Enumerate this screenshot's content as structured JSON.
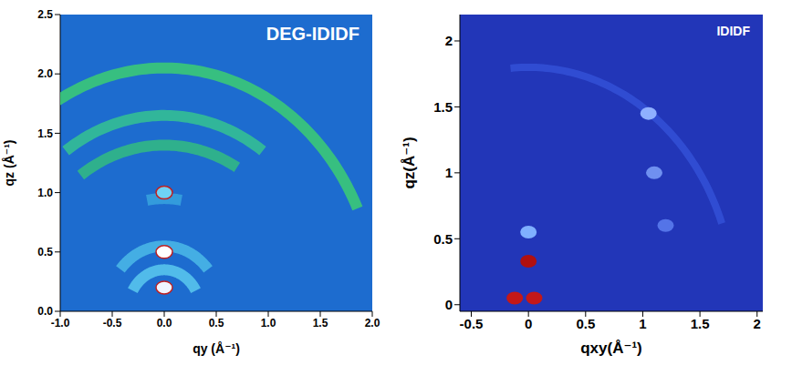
{
  "chart_data": [
    {
      "type": "scatter",
      "title": "DEG-IDIDF",
      "x_label": "qy (Å⁻¹)",
      "y_label": "qz (Å⁻¹)",
      "xlim": [
        -1,
        2
      ],
      "xticks": [
        {
          "value": -1,
          "label": "-1.0"
        },
        -0.5,
        {
          "value": 0,
          "label": "0.0"
        },
        0.5,
        {
          "value": 1,
          "label": "1.0"
        },
        1.5,
        {
          "value": 2,
          "label": "2.0"
        }
      ],
      "ylim": [
        0,
        2.5
      ],
      "yticks": [
        {
          "value": 0,
          "label": "0.0"
        },
        0.5,
        {
          "value": 1,
          "label": "1.0"
        },
        1.5,
        {
          "value": 2,
          "label": "2.0"
        },
        2.5
      ],
      "rings": [
        {
          "q": 2.05,
          "from_angle": 25,
          "to_angle": 120,
          "color": "#3fd46c"
        },
        {
          "q": 1.65,
          "from_angle": 55,
          "to_angle": 125,
          "color": "#37c98c"
        },
        {
          "q": 1.4,
          "from_angle": 60,
          "to_angle": 125,
          "color": "#34c27a"
        },
        {
          "q": 0.95,
          "from_angle": 80,
          "to_angle": 100,
          "color": "#3aa8de"
        },
        {
          "q": 0.55,
          "from_angle": 40,
          "to_angle": 140,
          "color": "#4fbfe8"
        },
        {
          "q": 0.35,
          "from_angle": 30,
          "to_angle": 150,
          "color": "#5fd0f0"
        }
      ],
      "spots": [
        {
          "x": 0,
          "y": 0.5,
          "color": "#ffffff"
        },
        {
          "x": 0,
          "y": 0.2,
          "color": "#f0f4ff"
        },
        {
          "x": 0,
          "y": 1.0,
          "color": "#6fd2f4"
        }
      ]
    },
    {
      "type": "scatter",
      "title": "IDIDF",
      "x_label": "qxy(Å⁻¹)",
      "y_label": "qz(Å⁻¹)",
      "xlim": [
        -0.6,
        2.05
      ],
      "xticks": [
        -0.5,
        0,
        0.5,
        1,
        1.5,
        2
      ],
      "ylim": [
        -0.05,
        2.2
      ],
      "yticks": [
        0,
        0.5,
        1,
        1.5,
        2
      ],
      "rings": [
        {
          "q": 1.8,
          "from_angle": 20,
          "to_angle": 95,
          "color": "#3552d8"
        }
      ],
      "spots": [
        {
          "x": 0,
          "y": 0.33,
          "color": "#b01010"
        },
        {
          "x": 0,
          "y": 0.55,
          "color": "#7fb0ff"
        },
        {
          "x": -0.12,
          "y": 0.05,
          "color": "#c41818"
        },
        {
          "x": 0.05,
          "y": 0.05,
          "color": "#c41818"
        },
        {
          "x": 1.05,
          "y": 1.45,
          "color": "#8fb0ff"
        },
        {
          "x": 1.1,
          "y": 1.0,
          "color": "#6f90f0"
        },
        {
          "x": 1.2,
          "y": 0.6,
          "color": "#5474e8"
        }
      ]
    }
  ]
}
